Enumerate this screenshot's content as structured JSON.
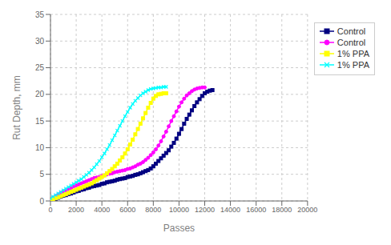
{
  "chart_data": {
    "type": "line",
    "title": "",
    "xlabel": "Passes",
    "ylabel": "Rut Depth, mm",
    "xlim": [
      0,
      20000
    ],
    "ylim": [
      0,
      35
    ],
    "xticks": [
      0,
      2000,
      4000,
      6000,
      8000,
      10000,
      12000,
      14000,
      16000,
      18000,
      20000
    ],
    "yticks": [
      0,
      5,
      10,
      15,
      20,
      25,
      30,
      35
    ],
    "grid": true,
    "legend": "right",
    "series": [
      {
        "name": "Control",
        "color": "#000080",
        "marker": "square",
        "x": [
          0,
          200,
          400,
          600,
          800,
          1000,
          1200,
          1400,
          1600,
          1800,
          2000,
          2200,
          2400,
          2600,
          2800,
          3000,
          3200,
          3400,
          3600,
          3800,
          4000,
          4200,
          4400,
          4600,
          4800,
          5000,
          5200,
          5400,
          5600,
          5800,
          6000,
          6200,
          6400,
          6600,
          6800,
          7000,
          7200,
          7400,
          7600,
          7800,
          8000,
          8200,
          8400,
          8600,
          8800,
          9000,
          9200,
          9400,
          9600,
          9800,
          10000,
          10200,
          10400,
          10600,
          10800,
          11000,
          11200,
          11400,
          11600,
          11800,
          12000,
          12200,
          12400,
          12600
        ],
        "values": [
          0,
          0.2,
          0.4,
          0.6,
          0.8,
          1.0,
          1.1,
          1.3,
          1.4,
          1.6,
          1.8,
          1.9,
          2.1,
          2.2,
          2.4,
          2.5,
          2.7,
          2.8,
          2.9,
          3.0,
          3.2,
          3.3,
          3.5,
          3.6,
          3.7,
          3.8,
          4.0,
          4.1,
          4.2,
          4.3,
          4.5,
          4.6,
          4.7,
          4.9,
          5.0,
          5.2,
          5.4,
          5.6,
          5.8,
          6.1,
          6.5,
          7.0,
          7.5,
          8.0,
          8.5,
          9.0,
          9.5,
          10.2,
          10.9,
          11.7,
          12.6,
          13.5,
          14.5,
          15.4,
          16.2,
          17.0,
          17.8,
          18.5,
          19.1,
          19.7,
          20.2,
          20.5,
          20.7,
          20.8
        ]
      },
      {
        "name": "Control",
        "color": "#FF00FF",
        "marker": "circle",
        "x": [
          0,
          200,
          400,
          600,
          800,
          1000,
          1200,
          1400,
          1600,
          1800,
          2000,
          2200,
          2400,
          2600,
          2800,
          3000,
          3200,
          3400,
          3600,
          3800,
          4000,
          4200,
          4400,
          4600,
          4800,
          5000,
          5200,
          5400,
          5600,
          5800,
          6000,
          6200,
          6400,
          6600,
          6800,
          7000,
          7200,
          7400,
          7600,
          7800,
          8000,
          8200,
          8400,
          8600,
          8800,
          9000,
          9200,
          9400,
          9600,
          9800,
          10000,
          10200,
          10400,
          10600,
          10800,
          11000,
          11200,
          11400,
          11600,
          11800,
          12000
        ],
        "values": [
          0.3,
          0.6,
          0.9,
          1.2,
          1.5,
          1.8,
          2.0,
          2.2,
          2.4,
          2.7,
          2.9,
          3.1,
          3.3,
          3.5,
          3.7,
          3.9,
          4.1,
          4.3,
          4.4,
          4.5,
          4.7,
          4.8,
          5.0,
          5.1,
          5.2,
          5.4,
          5.5,
          5.6,
          5.7,
          5.8,
          6.0,
          6.1,
          6.3,
          6.5,
          6.8,
          7.0,
          7.3,
          7.7,
          8.1,
          8.6,
          9.1,
          9.7,
          10.4,
          11.2,
          12.1,
          13.0,
          14.0,
          15.0,
          15.9,
          16.8,
          17.7,
          18.5,
          19.2,
          19.8,
          20.2,
          20.6,
          20.9,
          21.1,
          21.2,
          21.3,
          21.3
        ]
      },
      {
        "name": "1% PPA",
        "color": "#FFFF00",
        "marker": "square",
        "x": [
          0,
          200,
          400,
          600,
          800,
          1000,
          1200,
          1400,
          1600,
          1800,
          2000,
          2200,
          2400,
          2600,
          2800,
          3000,
          3200,
          3400,
          3600,
          3800,
          4000,
          4200,
          4400,
          4600,
          4800,
          5000,
          5200,
          5400,
          5600,
          5800,
          6000,
          6200,
          6400,
          6600,
          6800,
          7000,
          7200,
          7400,
          7600,
          7800,
          8000,
          8200,
          8400,
          8600,
          8800,
          9000
        ],
        "values": [
          0.1,
          0.3,
          0.5,
          0.7,
          0.9,
          1.1,
          1.3,
          1.5,
          1.7,
          1.9,
          2.1,
          2.3,
          2.5,
          2.7,
          2.9,
          3.1,
          3.3,
          3.6,
          3.9,
          4.2,
          4.5,
          4.8,
          5.2,
          5.6,
          6.0,
          6.5,
          7.0,
          7.6,
          8.2,
          8.9,
          9.7,
          10.6,
          11.5,
          12.5,
          13.5,
          14.5,
          15.5,
          16.5,
          17.5,
          18.4,
          19.2,
          19.7,
          20.0,
          20.1,
          20.2,
          20.2
        ]
      },
      {
        "name": "1% PPA",
        "color": "#00FFFF",
        "marker": "x",
        "x": [
          0,
          200,
          400,
          600,
          800,
          1000,
          1200,
          1400,
          1600,
          1800,
          2000,
          2200,
          2400,
          2600,
          2800,
          3000,
          3200,
          3400,
          3600,
          3800,
          4000,
          4200,
          4400,
          4600,
          4800,
          5000,
          5200,
          5400,
          5600,
          5800,
          6000,
          6200,
          6400,
          6600,
          6800,
          7000,
          7200,
          7400,
          7600,
          7800,
          8000,
          8200,
          8400,
          8600,
          8800,
          9000
        ],
        "values": [
          0.5,
          0.8,
          1.1,
          1.4,
          1.7,
          2.0,
          2.3,
          2.6,
          2.9,
          3.2,
          3.5,
          3.8,
          4.1,
          4.5,
          4.9,
          5.3,
          5.8,
          6.3,
          6.9,
          7.5,
          8.2,
          8.9,
          9.7,
          10.5,
          11.4,
          12.3,
          13.2,
          14.1,
          15.0,
          15.9,
          16.7,
          17.5,
          18.2,
          18.8,
          19.3,
          19.8,
          20.2,
          20.5,
          20.8,
          21.0,
          21.1,
          21.2,
          21.3,
          21.3,
          21.4,
          21.4
        ]
      }
    ]
  }
}
